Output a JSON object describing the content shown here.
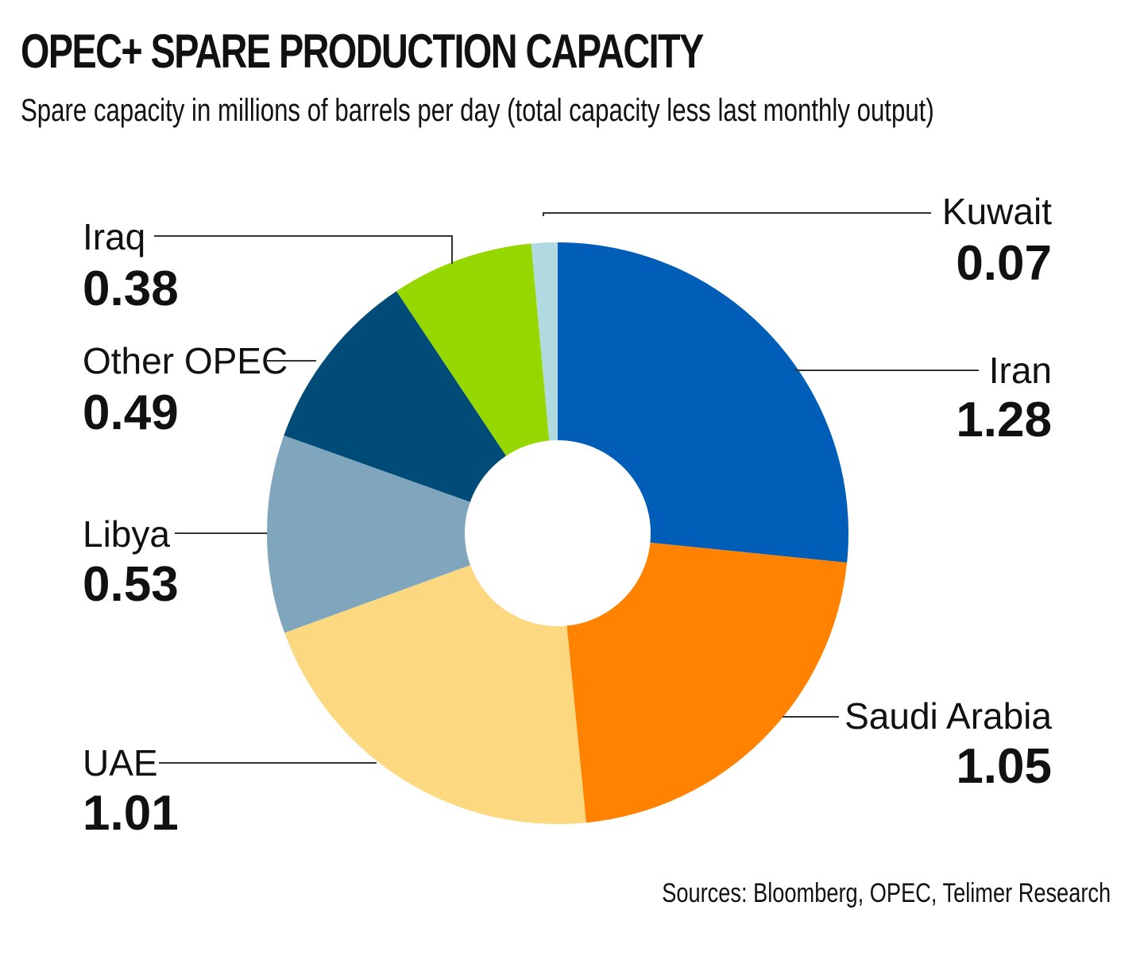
{
  "title": "OPEC+ SPARE PRODUCTION CAPACITY",
  "subtitle": "Spare capacity in millions of barrels per day (total capacity less last monthly output)",
  "source": "Sources: Bloomberg, OPEC, Telimer Research",
  "chart_data": {
    "type": "pie",
    "variant": "donut",
    "title": "OPEC+ SPARE PRODUCTION CAPACITY",
    "subtitle": "Spare capacity in millions of barrels per day (total capacity less last monthly output)",
    "unit": "millions of barrels per day",
    "start": "12 o'clock, clockwise",
    "slices": [
      {
        "label": "Iran",
        "value": 1.28,
        "display": "1.28",
        "color": "#005eb8",
        "side": "right"
      },
      {
        "label": "Saudi Arabia",
        "value": 1.05,
        "display": "1.05",
        "color": "#ff8200",
        "side": "right"
      },
      {
        "label": "UAE",
        "value": 1.01,
        "display": "1.01",
        "color": "#fcd880",
        "side": "left"
      },
      {
        "label": "Libya",
        "value": 0.53,
        "display": "0.53",
        "color": "#80a6be",
        "side": "left"
      },
      {
        "label": "Other OPEC",
        "value": 0.49,
        "display": "0.49",
        "color": "#004b77",
        "side": "left"
      },
      {
        "label": "Iraq",
        "value": 0.38,
        "display": "0.38",
        "color": "#97d700",
        "side": "left"
      },
      {
        "label": "Kuwait",
        "value": 0.07,
        "display": "0.07",
        "color": "#b0dadf",
        "side": "right"
      }
    ]
  }
}
